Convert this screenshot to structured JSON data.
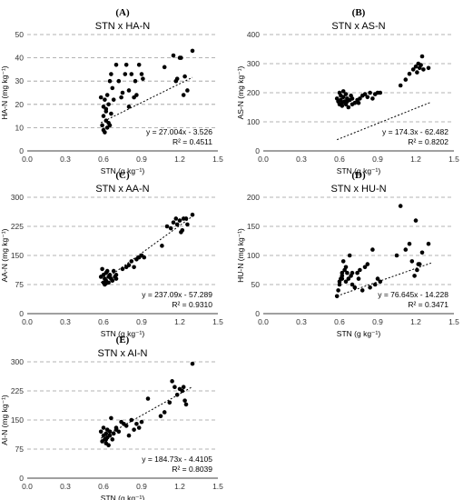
{
  "chart_data": [
    {
      "type": "scatter",
      "panel": "(A)",
      "title": "STN x HA-N",
      "xlabel": "STN (g kg⁻¹)",
      "ylabel": "HA-N (mg kg⁻¹)",
      "xlim": [
        0,
        1.5
      ],
      "ylim": [
        0,
        50
      ],
      "xticks": [
        "0.0",
        "0.3",
        "0.6",
        "0.9",
        "1.2",
        "1.5"
      ],
      "yticks": [
        "0",
        "10",
        "20",
        "30",
        "40",
        "50"
      ],
      "trendline": {
        "slope": 27.004,
        "intercept": -3.526,
        "x_range": [
          0.58,
          1.3
        ]
      },
      "equation": "y = 27.004x - 3.526",
      "r2": "R² = 0.4511",
      "grid": true,
      "x": [
        0.58,
        0.59,
        0.6,
        0.6,
        0.61,
        0.61,
        0.62,
        0.62,
        0.63,
        0.63,
        0.64,
        0.64,
        0.65,
        0.65,
        0.66,
        0.67,
        0.68,
        0.7,
        0.72,
        0.75,
        0.77,
        0.78,
        0.8,
        0.82,
        0.84,
        0.85,
        0.86,
        0.88,
        0.9,
        0.91,
        1.08,
        1.15,
        1.17,
        1.18,
        1.2,
        1.21,
        1.23,
        1.24,
        1.26,
        1.3,
        0.6,
        0.62,
        0.66,
        0.74,
        0.8
      ],
      "y": [
        23,
        11,
        15,
        19,
        8,
        22,
        13,
        17,
        10,
        24,
        12,
        20,
        30,
        11,
        33,
        27,
        22,
        37,
        30,
        25,
        33,
        37,
        26,
        33,
        23,
        30,
        24,
        37,
        33,
        31,
        36,
        41,
        30,
        31,
        40,
        40,
        24,
        32,
        26,
        43,
        9,
        18,
        16,
        23,
        19
      ]
    },
    {
      "type": "scatter",
      "panel": "(B)",
      "title": "STN x AS-N",
      "xlabel": "STN (g kg⁻¹)",
      "ylabel": "AS-N (mg kg⁻¹)",
      "xlim": [
        0,
        1.5
      ],
      "ylim": [
        0,
        400
      ],
      "xticks": [
        "0.0",
        "0.3",
        "0.6",
        "0.9",
        "1.2",
        "1.5"
      ],
      "yticks": [
        "0",
        "100",
        "200",
        "300",
        "400"
      ],
      "trendline": {
        "slope": 174.3,
        "intercept": -62.482,
        "x_range": [
          0.58,
          1.32
        ]
      },
      "equation": "y = 174.3x - 62.482",
      "r2": "R² = 0.8202",
      "grid": true,
      "x": [
        0.58,
        0.59,
        0.6,
        0.6,
        0.61,
        0.61,
        0.62,
        0.63,
        0.63,
        0.64,
        0.65,
        0.65,
        0.66,
        0.67,
        0.68,
        0.69,
        0.7,
        0.72,
        0.74,
        0.76,
        0.78,
        0.8,
        0.82,
        0.84,
        0.86,
        0.88,
        0.9,
        0.92,
        1.08,
        1.12,
        1.15,
        1.18,
        1.2,
        1.21,
        1.22,
        1.23,
        1.24,
        1.25,
        1.26,
        1.3,
        0.62,
        0.66,
        0.7,
        0.75
      ],
      "y": [
        180,
        170,
        200,
        160,
        190,
        175,
        165,
        205,
        185,
        170,
        160,
        195,
        180,
        150,
        175,
        190,
        160,
        165,
        175,
        180,
        190,
        195,
        185,
        200,
        180,
        195,
        200,
        200,
        225,
        245,
        265,
        280,
        290,
        270,
        300,
        285,
        295,
        325,
        280,
        285,
        155,
        170,
        180,
        165
      ]
    },
    {
      "type": "scatter",
      "panel": "(C)",
      "title": "STN x AA-N",
      "xlabel": "STN (g kg⁻¹)",
      "ylabel": "AA-N (mg kg⁻¹)",
      "xlim": [
        0,
        1.5
      ],
      "ylim": [
        0,
        300
      ],
      "xticks": [
        "0.0",
        "0.3",
        "0.6",
        "0.9",
        "1.2",
        "1.5"
      ],
      "yticks": [
        "0",
        "75",
        "150",
        "225",
        "300"
      ],
      "trendline": {
        "slope": 237.09,
        "intercept": -57.289,
        "x_range": [
          0.58,
          1.3
        ]
      },
      "equation": "y = 237.09x - 57.289",
      "r2": "R² = 0.9310",
      "grid": true,
      "x": [
        0.58,
        0.59,
        0.6,
        0.6,
        0.61,
        0.61,
        0.62,
        0.62,
        0.63,
        0.64,
        0.64,
        0.65,
        0.66,
        0.67,
        0.68,
        0.69,
        0.7,
        0.75,
        0.78,
        0.8,
        0.82,
        0.84,
        0.86,
        0.88,
        0.9,
        0.92,
        1.06,
        1.1,
        1.13,
        1.15,
        1.17,
        1.18,
        1.2,
        1.21,
        1.22,
        1.23,
        1.25,
        1.26,
        1.3,
        0.62,
        0.65,
        0.7
      ],
      "y": [
        95,
        115,
        80,
        100,
        75,
        90,
        105,
        85,
        110,
        95,
        80,
        100,
        90,
        85,
        110,
        95,
        100,
        115,
        120,
        125,
        135,
        120,
        140,
        145,
        150,
        145,
        175,
        225,
        220,
        235,
        245,
        230,
        240,
        210,
        215,
        245,
        245,
        230,
        255,
        78,
        98,
        90
      ]
    },
    {
      "type": "scatter",
      "panel": "(D)",
      "title": "STN x HU-N",
      "xlabel": "STN (g kg⁻¹)",
      "ylabel": "HU-N (mg kg⁻¹)",
      "xlim": [
        0,
        1.5
      ],
      "ylim": [
        0,
        200
      ],
      "xticks": [
        "0.0",
        "0.3",
        "0.6",
        "0.9",
        "1.2",
        "1.5"
      ],
      "yticks": [
        "0",
        "50",
        "100",
        "150",
        "200"
      ],
      "trendline": {
        "slope": 76.645,
        "intercept": -14.228,
        "x_range": [
          0.58,
          1.32
        ]
      },
      "equation": "y = 76.645x - 14.228",
      "r2": "R² = 0.3471",
      "grid": true,
      "x": [
        0.58,
        0.59,
        0.6,
        0.6,
        0.61,
        0.62,
        0.62,
        0.63,
        0.64,
        0.65,
        0.65,
        0.66,
        0.67,
        0.68,
        0.69,
        0.7,
        0.72,
        0.74,
        0.76,
        0.78,
        0.8,
        0.82,
        0.84,
        0.86,
        0.88,
        0.9,
        0.92,
        1.05,
        1.08,
        1.12,
        1.15,
        1.17,
        1.19,
        1.2,
        1.21,
        1.22,
        1.23,
        1.25,
        1.3,
        0.62,
        0.7,
        0.75
      ],
      "y": [
        30,
        40,
        50,
        55,
        60,
        70,
        65,
        90,
        75,
        55,
        80,
        70,
        60,
        100,
        65,
        50,
        45,
        70,
        75,
        40,
        80,
        85,
        45,
        110,
        50,
        60,
        55,
        100,
        185,
        110,
        120,
        90,
        65,
        160,
        75,
        85,
        85,
        105,
        120,
        60,
        70,
        60
      ]
    },
    {
      "type": "scatter",
      "panel": "(E)",
      "title": "STN x AI-N",
      "xlabel": "STN (g kg⁻¹)",
      "ylabel": "AI-N (mg kg⁻¹)",
      "xlim": [
        0,
        1.5
      ],
      "ylim": [
        0,
        300
      ],
      "xticks": [
        "0.0",
        "0.3",
        "0.6",
        "0.9",
        "1.2",
        "1.5"
      ],
      "yticks": [
        "0",
        "75",
        "150",
        "225",
        "300"
      ],
      "trendline": {
        "slope": 184.73,
        "intercept": -4.4105,
        "x_range": [
          0.58,
          1.3
        ]
      },
      "equation": "y = 184.73x - 4.4105",
      "r2": "R² = 0.8039",
      "grid": true,
      "x": [
        0.58,
        0.59,
        0.6,
        0.6,
        0.61,
        0.62,
        0.62,
        0.63,
        0.63,
        0.64,
        0.65,
        0.65,
        0.66,
        0.67,
        0.68,
        0.7,
        0.72,
        0.74,
        0.76,
        0.78,
        0.8,
        0.82,
        0.84,
        0.86,
        0.88,
        0.9,
        0.95,
        1.05,
        1.08,
        1.12,
        1.14,
        1.16,
        1.18,
        1.2,
        1.22,
        1.23,
        1.24,
        1.25,
        1.3,
        0.62,
        0.65,
        0.7
      ],
      "y": [
        120,
        95,
        110,
        130,
        100,
        115,
        90,
        125,
        105,
        85,
        120,
        110,
        155,
        100,
        115,
        130,
        120,
        145,
        140,
        135,
        110,
        150,
        125,
        140,
        130,
        145,
        205,
        160,
        170,
        195,
        250,
        235,
        215,
        230,
        225,
        235,
        200,
        190,
        295,
        100,
        120,
        125
      ]
    }
  ]
}
